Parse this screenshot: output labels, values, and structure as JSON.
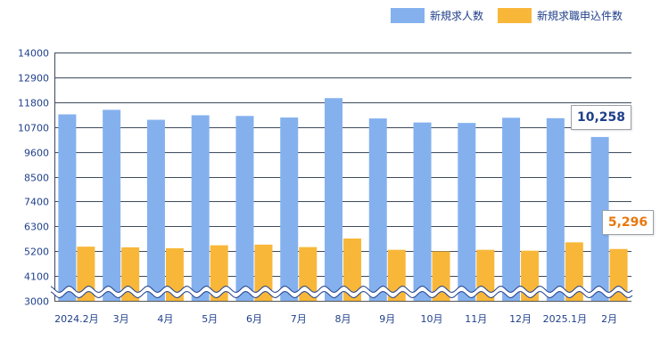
{
  "chart_data": {
    "type": "bar",
    "categories": [
      "2024.2月",
      "3月",
      "4月",
      "5月",
      "6月",
      "7月",
      "8月",
      "9月",
      "10月",
      "11月",
      "12月",
      "2025.1月",
      "2月"
    ],
    "series": [
      {
        "name": "新規求人数",
        "color": "#84b1ee",
        "values": [
          11260,
          11460,
          11020,
          11220,
          11190,
          11120,
          11980,
          11080,
          10900,
          10880,
          11110,
          11090,
          10258
        ]
      },
      {
        "name": "新規求職申込件数",
        "color": "#f8b739",
        "values": [
          5400,
          5370,
          5330,
          5460,
          5490,
          5380,
          5760,
          5260,
          5190,
          5260,
          5220,
          5590,
          5296
        ]
      }
    ],
    "yticks": [
      "14000",
      "12900",
      "11800",
      "10700",
      "9600",
      "8500",
      "7400",
      "6300",
      "5200",
      "4100",
      "3000"
    ],
    "ylim": [
      3000,
      14000
    ],
    "axis_break": true,
    "grid": true,
    "legend_position": "top-right",
    "annotations": [
      {
        "text": "10,258",
        "series": 0,
        "category": "2月",
        "color": "#1f3f8a"
      },
      {
        "text": "5,296",
        "series": 1,
        "category": "2月",
        "color": "#e8770e"
      }
    ]
  }
}
